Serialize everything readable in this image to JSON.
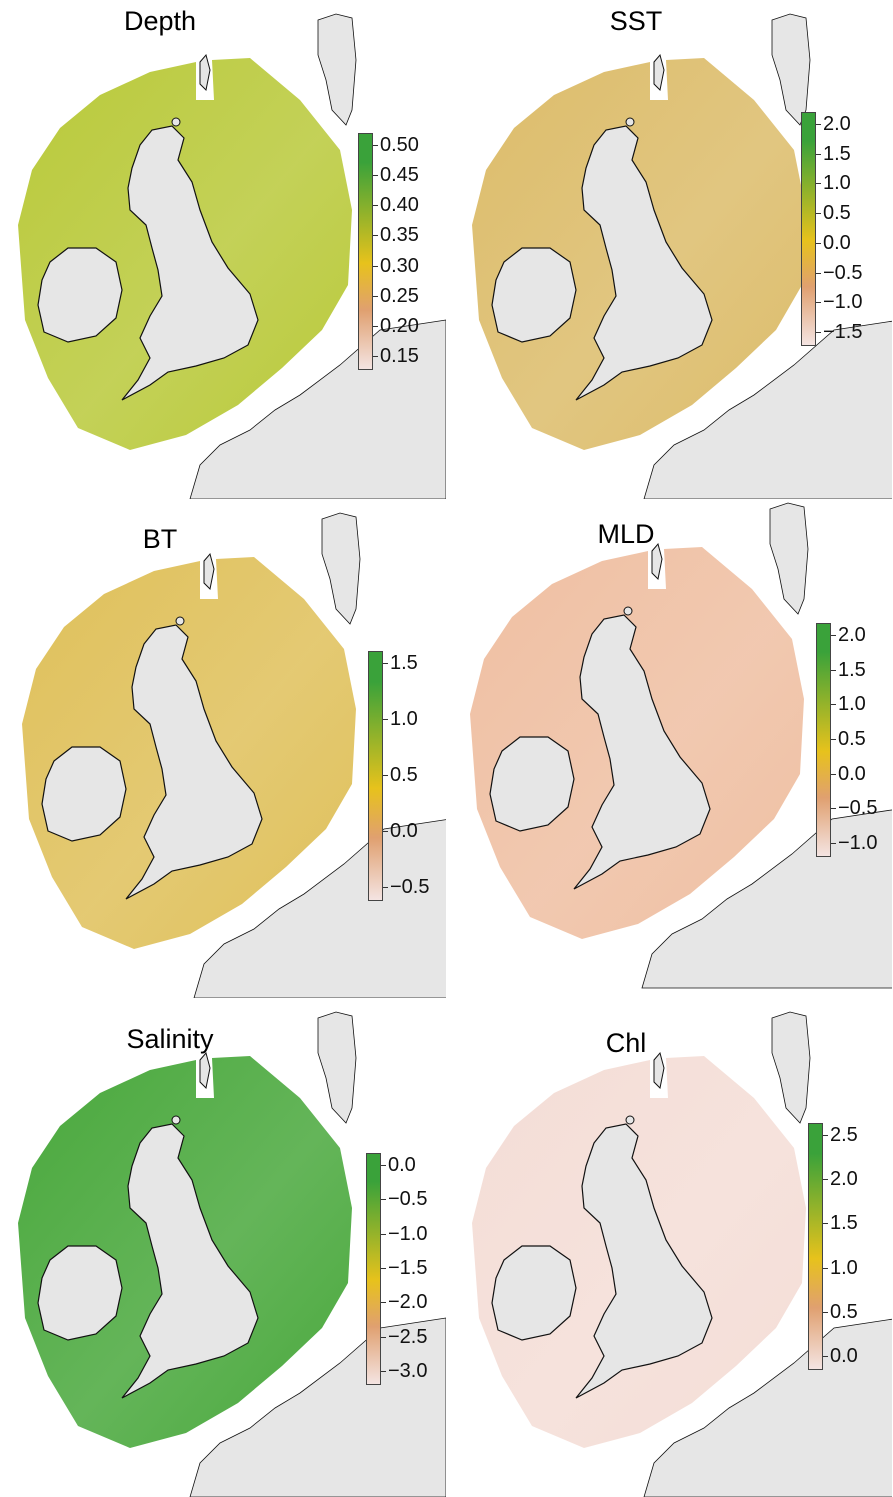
{
  "figure": {
    "panels": [
      {
        "id": "depth",
        "title": "Depth",
        "color_low": "#f4e4e2",
        "color_mid": "#e7c21c",
        "color_high": "#3aa23a",
        "sea_color": "#b9c93a",
        "scale": {
          "min": 0.15,
          "max": 0.5,
          "ticks": [
            "0.50",
            "0.45",
            "0.40",
            "0.35",
            "0.30",
            "0.25",
            "0.20",
            "0.15"
          ]
        }
      },
      {
        "id": "sst",
        "title": "SST",
        "color_low": "#f4e4e2",
        "color_mid": "#e7c21c",
        "color_high": "#3aa23a",
        "sea_color": "#dcbc6a",
        "scale": {
          "min": -1.6,
          "max": 2.1,
          "ticks": [
            "2.0",
            "1.5",
            "1.0",
            "0.5",
            "0.0",
            "−0.5",
            "−1.0",
            "−1.5"
          ]
        }
      },
      {
        "id": "bt",
        "title": "BT",
        "color_low": "#f4e4e2",
        "color_mid": "#e7c21c",
        "color_high": "#3aa23a",
        "sea_color": "#dfc05a",
        "scale": {
          "min": -0.85,
          "max": 1.9,
          "ticks": [
            "1.5",
            "1.0",
            "0.5",
            "0.0",
            "−0.5"
          ]
        }
      },
      {
        "id": "mld",
        "title": "MLD",
        "color_low": "#f4e4e2",
        "color_mid": "#e7c21c",
        "color_high": "#3aa23a",
        "sea_color": "#efbfa2",
        "scale": {
          "min": -1.0,
          "max": 2.05,
          "ticks": [
            "2.0",
            "1.5",
            "1.0",
            "0.5",
            "0.0",
            "−0.5",
            "−1.0"
          ]
        }
      },
      {
        "id": "salinity",
        "title": "Salinity",
        "color_low": "#f4e4e2",
        "color_mid": "#e7c21c",
        "color_high": "#3aa23a",
        "sea_color": "#49a83c",
        "scale": {
          "min": -3.3,
          "max": 0.05,
          "ticks": [
            "0.0",
            "−0.5",
            "−1.0",
            "−1.5",
            "−2.0",
            "−2.5",
            "−3.0"
          ]
        }
      },
      {
        "id": "chl",
        "title": "Chl",
        "color_low": "#f4e4e2",
        "color_mid": "#e7c21c",
        "color_high": "#3aa23a",
        "sea_color": "#f4ddd6",
        "scale": {
          "min": -0.35,
          "max": 2.85,
          "ticks": [
            "2.5",
            "2.0",
            "1.5",
            "1.0",
            "0.5",
            "0.0"
          ]
        }
      }
    ],
    "land_color": "#e6e6e6",
    "coast_color": "#111111"
  }
}
